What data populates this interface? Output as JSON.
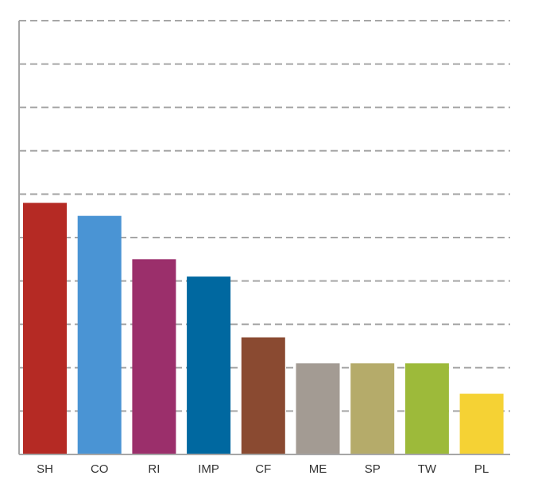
{
  "chart_data": {
    "type": "bar",
    "title": "",
    "xlabel": "",
    "ylabel": "",
    "ylim": [
      0,
      10
    ],
    "grid": true,
    "legend": "none",
    "categories": [
      "SH",
      "CO",
      "RI",
      "IMP",
      "CF",
      "ME",
      "SP",
      "TW",
      "PL"
    ],
    "values": [
      5.8,
      5.5,
      4.5,
      4.1,
      2.7,
      2.1,
      2.1,
      2.1,
      1.4
    ],
    "colors": [
      "#b52a24",
      "#4a94d4",
      "#9b2f6b",
      "#0068a0",
      "#8a4a31",
      "#a39b93",
      "#b5ab6a",
      "#9dba3a",
      "#f5d234"
    ]
  }
}
